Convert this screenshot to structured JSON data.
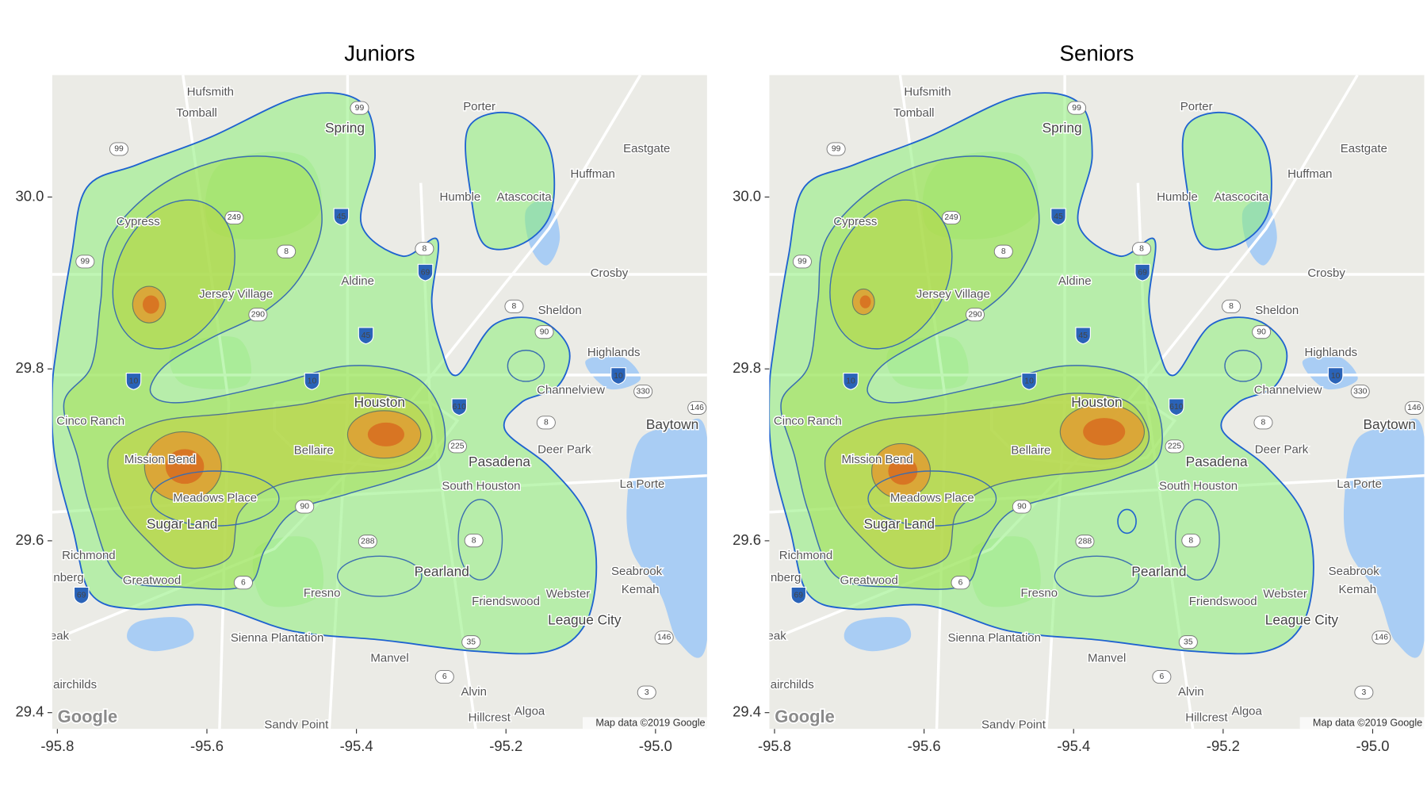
{
  "chart_data": [
    {
      "type": "density_map",
      "title": "Juniors",
      "xlim": [
        -95.807,
        -94.931
      ],
      "ylim": [
        29.381,
        30.142
      ],
      "xticks": [
        -95.8,
        -95.6,
        -95.4,
        -95.2,
        {
          "value": -95,
          "label": "-95.0"
        }
      ],
      "yticks": [
        29.4,
        29.6,
        29.8,
        {
          "value": 30,
          "label": "30.0"
        }
      ]
    },
    {
      "type": "density_map",
      "title": "Seniors",
      "xlim": [
        -95.807,
        -94.931
      ],
      "ylim": [
        29.381,
        30.142
      ],
      "xticks": [
        -95.8,
        -95.6,
        -95.4,
        -95.2,
        {
          "value": -95,
          "label": "-95.0"
        }
      ],
      "yticks": [
        29.4,
        29.6,
        29.8,
        {
          "value": 30,
          "label": "30.0"
        }
      ]
    }
  ],
  "basemap": {
    "places": [
      "Hufsmith",
      "Tomball",
      "Spring",
      "Porter",
      "Eastgate",
      "Huffman",
      "Humble",
      "Atascocita",
      "Cypress",
      "Aldine",
      "Crosby",
      "Jersey Village",
      "Sheldon",
      "Highlands",
      "Channelview",
      "Houston",
      "Cinco Ranch",
      "Baytown",
      "Bellaire",
      "Deer Park",
      "Mission Bend",
      "Pasadena",
      "La Porte",
      "South Houston",
      "Meadows Place",
      "Sugar Land",
      "Richmond",
      "Seabrook",
      "Pearland",
      "Greatwood",
      "Kemah",
      "Fresno",
      "Webster",
      "Friendswood",
      "League City",
      "Sienna Plantation",
      "Manvel",
      "airchilds",
      "Alvin",
      "Algoa",
      "Hillcrest",
      "Sandy Point",
      "nberg",
      "eak"
    ],
    "shields": [
      "99",
      "249",
      "8",
      "45",
      "8",
      "69",
      "290",
      "45",
      "8",
      "90",
      "10",
      "10",
      "10",
      "610",
      "330",
      "146",
      "8",
      "225",
      "288",
      "35",
      "146",
      "6",
      "3",
      "99",
      "99",
      "8",
      "6",
      "69",
      "90"
    ],
    "logo": "Google",
    "attribution": "Map data ©2019 Google"
  }
}
